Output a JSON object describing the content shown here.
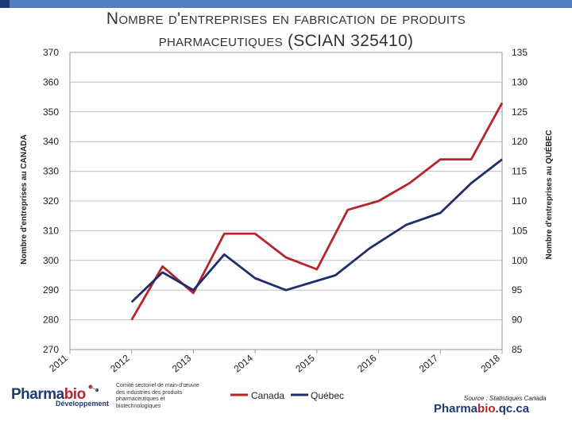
{
  "title_line1": "Nombre d'entreprises en fabrication de produits",
  "title_line2": "pharmaceutiques (SCIAN 325410)",
  "source": "Source : Statistiques Canada",
  "website": {
    "part1": "Pharma",
    "part2": "bio",
    "part3": ".qc.ca"
  },
  "logo": {
    "part1": "Pharma",
    "part2": "bio",
    "sub": "Développement",
    "desc": "Comité sectoriel de main-d'œuvre des industries des produits pharmaceutiques et biotechnologiques"
  },
  "colors": {
    "canada": "#b5252b",
    "quebec": "#1f2d6b",
    "accent": "#4f7fbf"
  },
  "chart_data": {
    "type": "line",
    "title": "Nombre d'entreprises en fabrication de produits pharmaceutiques (SCIAN 325410)",
    "x": [
      2012,
      2012.5,
      2013,
      2013.5,
      2014,
      2014.5,
      2015,
      2015.5,
      2016,
      2016.5,
      2017,
      2017.5,
      2018
    ],
    "xticks": [
      "2011",
      "2012",
      "2013",
      "2014",
      "2015",
      "2016",
      "2017",
      "2018"
    ],
    "xlim": [
      2011,
      2018
    ],
    "y_left_label": "Nombre d'entreprises au CANADA",
    "y_right_label": "Nombre d'entreprises au QUÉBEC",
    "y_left_lim": [
      270,
      370
    ],
    "y_right_lim": [
      85,
      135
    ],
    "y_left_ticks": [
      "270",
      "280",
      "290",
      "300",
      "310",
      "320",
      "330",
      "340",
      "350",
      "360",
      "370"
    ],
    "y_right_ticks": [
      "85",
      "90",
      "95",
      "100",
      "105",
      "110",
      "115",
      "120",
      "125",
      "130",
      "135"
    ],
    "series": [
      {
        "name": "Canada",
        "axis": "left",
        "values": [
          280,
          298,
          289,
          309,
          309,
          301,
          297,
          317,
          320,
          326,
          334,
          334,
          353
        ]
      },
      {
        "name": "Québec",
        "axis": "right",
        "x": [
          2012,
          2012.5,
          2013,
          2013.5,
          2014,
          2014.5,
          2015.3,
          2015.85,
          2016.45,
          2017,
          2017.5,
          2018
        ],
        "values": [
          93,
          98,
          95,
          101,
          97,
          95,
          97.5,
          102,
          106,
          108,
          113,
          117
        ]
      }
    ],
    "legend": [
      "Canada",
      "Québec"
    ],
    "legend_position": "bottom"
  }
}
